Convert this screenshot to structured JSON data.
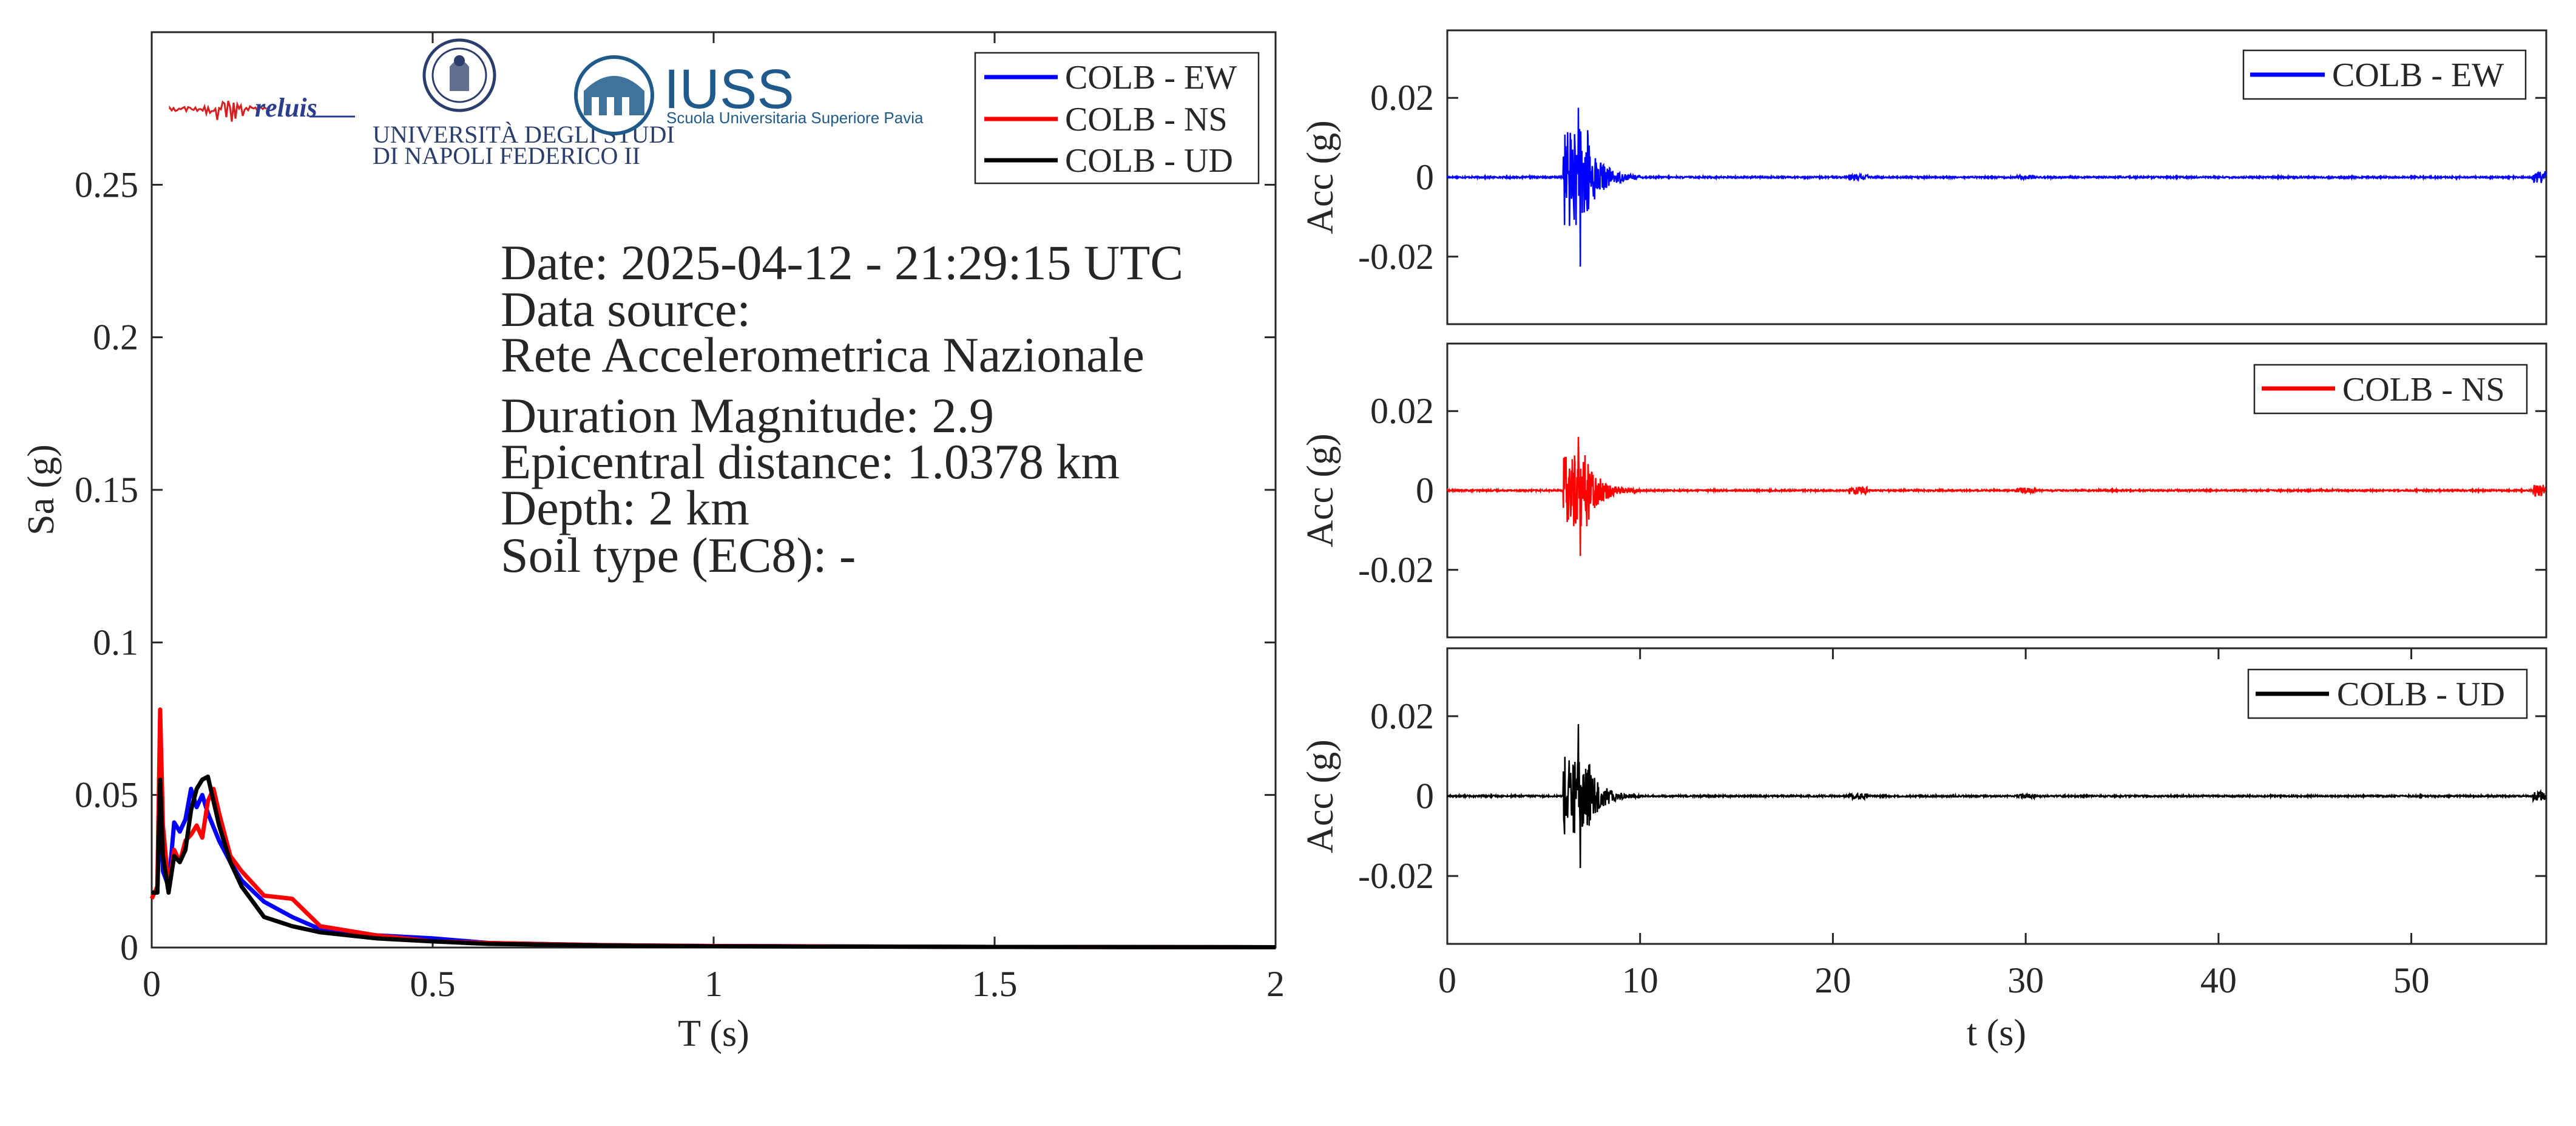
{
  "colors": {
    "ew": "#0000ff",
    "ns": "#ff0000",
    "ud": "#000000",
    "axis": "#262626"
  },
  "logos": {
    "reluis": "reluis",
    "unina_line1": "UNIVERSITÀ DEGLI STUDI",
    "unina_line2": "DI NAPOLI FEDERICO II",
    "iuss": "IUSS",
    "iuss_sub": "Scuola Universitaria Superiore Pavia"
  },
  "info": {
    "date": "Date: 2025-04-12 - 21:29:15 UTC",
    "source_label": "Data source:",
    "source": "Rete Accelerometrica Nazionale",
    "magnitude": "Duration Magnitude: 2.9",
    "distance": "Epicentral distance: 1.0378 km",
    "depth": "Depth: 2 km",
    "soil": "Soil type (EC8): -"
  },
  "chart_data": [
    {
      "type": "line",
      "xlabel": "T (s)",
      "ylabel": "Sa (g)",
      "xlim": [
        0,
        2
      ],
      "ylim": [
        0,
        0.3
      ],
      "xticks": [
        0,
        0.5,
        1,
        1.5,
        2
      ],
      "xticklabels": [
        "0",
        "0.5",
        "1",
        "1.5",
        "2"
      ],
      "yticks": [
        0,
        0.05,
        0.1,
        0.15,
        0.2,
        0.25
      ],
      "yticklabels": [
        "0",
        "0.05",
        "0.1",
        "0.15",
        "0.2",
        "0.25"
      ],
      "legend": "top-right",
      "series": [
        {
          "name": "COLB - EW",
          "color": "#0000ff",
          "x": [
            0,
            0.01,
            0.015,
            0.02,
            0.03,
            0.04,
            0.05,
            0.06,
            0.07,
            0.08,
            0.09,
            0.1,
            0.12,
            0.14,
            0.16,
            0.2,
            0.25,
            0.3,
            0.4,
            0.5,
            0.6,
            0.8,
            1.0,
            1.5,
            2.0
          ],
          "y": [
            0.018,
            0.018,
            0.05,
            0.025,
            0.02,
            0.041,
            0.038,
            0.042,
            0.052,
            0.046,
            0.05,
            0.044,
            0.035,
            0.028,
            0.022,
            0.015,
            0.01,
            0.006,
            0.004,
            0.003,
            0.0015,
            0.0008,
            0.0005,
            0.0002,
            0.0001
          ]
        },
        {
          "name": "COLB - NS",
          "color": "#ff0000",
          "x": [
            0,
            0.01,
            0.015,
            0.02,
            0.03,
            0.04,
            0.05,
            0.06,
            0.07,
            0.08,
            0.09,
            0.1,
            0.11,
            0.12,
            0.14,
            0.16,
            0.2,
            0.25,
            0.3,
            0.4,
            0.5,
            0.6,
            0.8,
            1.0,
            1.5,
            2.0
          ],
          "y": [
            0.016,
            0.02,
            0.078,
            0.04,
            0.02,
            0.032,
            0.028,
            0.035,
            0.037,
            0.04,
            0.036,
            0.048,
            0.052,
            0.044,
            0.03,
            0.025,
            0.017,
            0.016,
            0.007,
            0.004,
            0.002,
            0.0015,
            0.0008,
            0.0005,
            0.0002,
            0.0001
          ]
        },
        {
          "name": "COLB - UD",
          "color": "#000000",
          "x": [
            0,
            0.01,
            0.015,
            0.02,
            0.03,
            0.04,
            0.05,
            0.06,
            0.07,
            0.08,
            0.09,
            0.1,
            0.12,
            0.14,
            0.16,
            0.2,
            0.25,
            0.3,
            0.4,
            0.5,
            0.6,
            0.8,
            1.0,
            1.5,
            2.0
          ],
          "y": [
            0.018,
            0.018,
            0.055,
            0.03,
            0.018,
            0.03,
            0.028,
            0.032,
            0.045,
            0.052,
            0.055,
            0.056,
            0.04,
            0.028,
            0.02,
            0.01,
            0.007,
            0.005,
            0.003,
            0.002,
            0.0012,
            0.0007,
            0.0004,
            0.0002,
            0.0001
          ]
        }
      ]
    },
    {
      "type": "line",
      "xlabel": "",
      "ylabel": "Acc (g)",
      "xlim": [
        0,
        57
      ],
      "ylim": [
        -0.037,
        0.037
      ],
      "yticks": [
        -0.02,
        0,
        0.02
      ],
      "yticklabels": [
        "-0.02",
        "0",
        "0.02"
      ],
      "legend": "top-right",
      "series": [
        {
          "name": "COLB - EW",
          "color": "#0000ff",
          "peaks": {
            "max": 0.0175,
            "min": -0.0225,
            "onset_s": 6.0,
            "decay_end_s": 10.0,
            "noise": 0.0002,
            "bursts": [
              {
                "t": 21.3,
                "amp": 0.0007
              },
              {
                "t": 30.0,
                "amp": 0.0005
              },
              {
                "t": 56.8,
                "amp": 0.0015
              }
            ]
          }
        }
      ]
    },
    {
      "type": "line",
      "xlabel": "",
      "ylabel": "Acc (g)",
      "xlim": [
        0,
        57
      ],
      "ylim": [
        -0.037,
        0.037
      ],
      "yticks": [
        -0.02,
        0,
        0.02
      ],
      "yticklabels": [
        "-0.02",
        "0",
        "0.02"
      ],
      "legend": "top-right",
      "series": [
        {
          "name": "COLB - NS",
          "color": "#ff0000",
          "peaks": {
            "max": 0.0135,
            "min": -0.0165,
            "onset_s": 6.0,
            "decay_end_s": 10.0,
            "noise": 0.0002,
            "bursts": [
              {
                "t": 21.3,
                "amp": 0.0009
              },
              {
                "t": 30.0,
                "amp": 0.0007
              },
              {
                "t": 56.8,
                "amp": 0.0015
              }
            ]
          }
        }
      ]
    },
    {
      "type": "line",
      "xlabel": "t (s)",
      "ylabel": "Acc (g)",
      "xlim": [
        0,
        57
      ],
      "ylim": [
        -0.037,
        0.037
      ],
      "xticks": [
        0,
        10,
        20,
        30,
        40,
        50
      ],
      "xticklabels": [
        "0",
        "10",
        "20",
        "30",
        "40",
        "50"
      ],
      "yticks": [
        -0.02,
        0,
        0.02
      ],
      "yticklabels": [
        "-0.02",
        "0",
        "0.02"
      ],
      "legend": "top-right",
      "series": [
        {
          "name": "COLB - UD",
          "color": "#000000",
          "peaks": {
            "max": 0.018,
            "min": -0.018,
            "onset_s": 6.0,
            "decay_end_s": 10.0,
            "noise": 0.0002,
            "bursts": [
              {
                "t": 21.3,
                "amp": 0.0007
              },
              {
                "t": 30.0,
                "amp": 0.0005
              },
              {
                "t": 56.8,
                "amp": 0.0012
              }
            ]
          }
        }
      ]
    }
  ]
}
